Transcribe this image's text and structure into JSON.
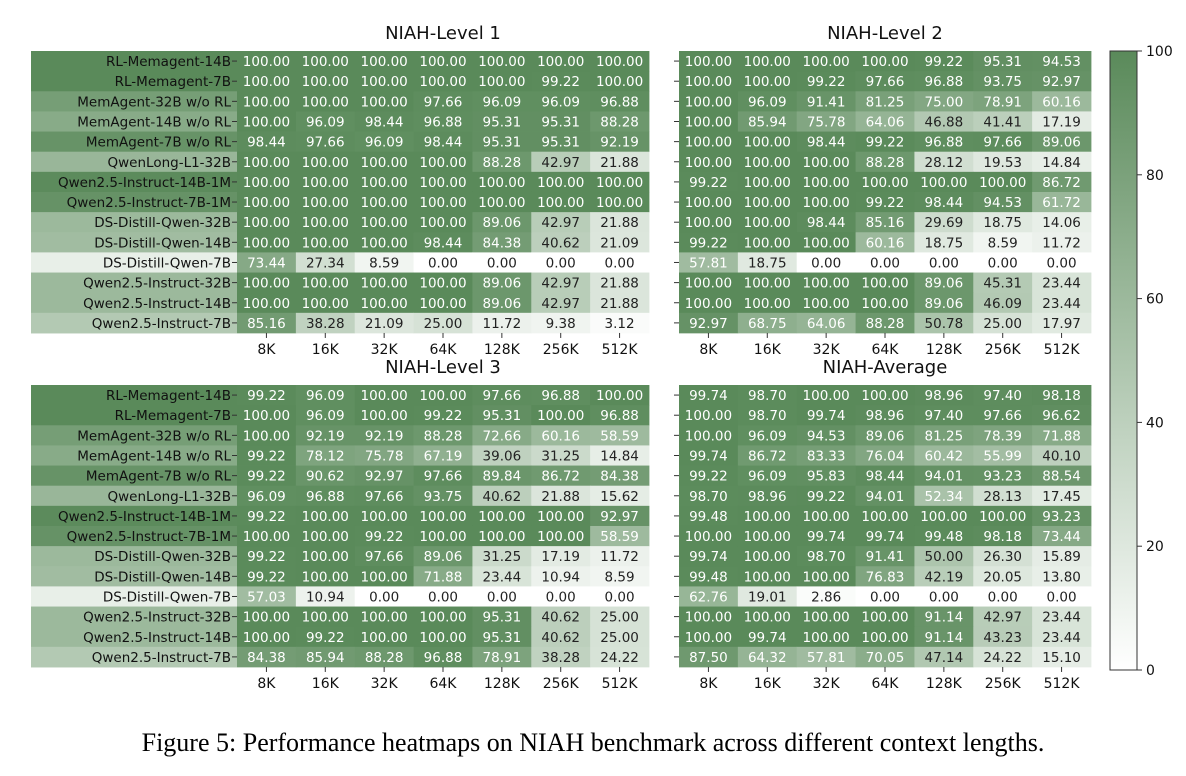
{
  "caption": "Figure 5: Performance heatmaps on NIAH benchmark across different context lengths.",
  "colors": {
    "low": "#ffffff",
    "high": "#5a8a5a",
    "text_dark": "#222222",
    "text_light": "#ffffff"
  },
  "chart_data": [
    {
      "type": "heatmap",
      "title": "NIAH-Level 1",
      "x": [
        "8K",
        "16K",
        "32K",
        "64K",
        "128K",
        "256K",
        "512K"
      ],
      "y": [
        "RL-Memagent-14B",
        "RL-Memagent-7B",
        "MemAgent-32B w/o RL",
        "MemAgent-14B w/o RL",
        "MemAgent-7B w/o RL",
        "QwenLong-L1-32B",
        "Qwen2.5-Instruct-14B-1M",
        "Qwen2.5-Instruct-7B-1M",
        "DS-Distill-Qwen-32B",
        "DS-Distill-Qwen-14B",
        "DS-Distill-Qwen-7B",
        "Qwen2.5-Instruct-32B",
        "Qwen2.5-Instruct-14B",
        "Qwen2.5-Instruct-7B"
      ],
      "values": [
        [
          "100.00",
          "100.00",
          "100.00",
          "100.00",
          "100.00",
          "100.00",
          "100.00"
        ],
        [
          "100.00",
          "100.00",
          "100.00",
          "100.00",
          "100.00",
          "99.22",
          "100.00"
        ],
        [
          "100.00",
          "100.00",
          "100.00",
          "97.66",
          "96.09",
          "96.09",
          "96.88"
        ],
        [
          "100.00",
          "96.09",
          "98.44",
          "96.88",
          "95.31",
          "95.31",
          "88.28"
        ],
        [
          "98.44",
          "97.66",
          "96.09",
          "98.44",
          "95.31",
          "95.31",
          "92.19"
        ],
        [
          "100.00",
          "100.00",
          "100.00",
          "100.00",
          "88.28",
          "42.97",
          "21.88"
        ],
        [
          "100.00",
          "100.00",
          "100.00",
          "100.00",
          "100.00",
          "100.00",
          "100.00"
        ],
        [
          "100.00",
          "100.00",
          "100.00",
          "100.00",
          "100.00",
          "100.00",
          "100.00"
        ],
        [
          "100.00",
          "100.00",
          "100.00",
          "100.00",
          "89.06",
          "42.97",
          "21.88"
        ],
        [
          "100.00",
          "100.00",
          "100.00",
          "98.44",
          "84.38",
          "40.62",
          "21.09"
        ],
        [
          "73.44",
          "27.34",
          "8.59",
          "0.00",
          "0.00",
          "0.00",
          "0.00"
        ],
        [
          "100.00",
          "100.00",
          "100.00",
          "100.00",
          "89.06",
          "42.97",
          "21.88"
        ],
        [
          "100.00",
          "100.00",
          "100.00",
          "100.00",
          "89.06",
          "42.97",
          "21.88"
        ],
        [
          "85.16",
          "38.28",
          "21.09",
          "25.00",
          "11.72",
          "9.38",
          "3.12"
        ]
      ]
    },
    {
      "type": "heatmap",
      "title": "NIAH-Level 2",
      "x": [
        "8K",
        "16K",
        "32K",
        "64K",
        "128K",
        "256K",
        "512K"
      ],
      "y": [
        "RL-Memagent-14B",
        "RL-Memagent-7B",
        "MemAgent-32B w/o RL",
        "MemAgent-14B w/o RL",
        "MemAgent-7B w/o RL",
        "QwenLong-L1-32B",
        "Qwen2.5-Instruct-14B-1M",
        "Qwen2.5-Instruct-7B-1M",
        "DS-Distill-Qwen-32B",
        "DS-Distill-Qwen-14B",
        "DS-Distill-Qwen-7B",
        "Qwen2.5-Instruct-32B",
        "Qwen2.5-Instruct-14B",
        "Qwen2.5-Instruct-7B"
      ],
      "values": [
        [
          "100.00",
          "100.00",
          "100.00",
          "100.00",
          "99.22",
          "95.31",
          "94.53"
        ],
        [
          "100.00",
          "100.00",
          "99.22",
          "97.66",
          "96.88",
          "93.75",
          "92.97"
        ],
        [
          "100.00",
          "96.09",
          "91.41",
          "81.25",
          "75.00",
          "78.91",
          "60.16"
        ],
        [
          "100.00",
          "85.94",
          "75.78",
          "64.06",
          "46.88",
          "41.41",
          "17.19"
        ],
        [
          "100.00",
          "100.00",
          "98.44",
          "99.22",
          "96.88",
          "97.66",
          "89.06"
        ],
        [
          "100.00",
          "100.00",
          "100.00",
          "88.28",
          "28.12",
          "19.53",
          "14.84"
        ],
        [
          "99.22",
          "100.00",
          "100.00",
          "100.00",
          "100.00",
          "100.00",
          "86.72"
        ],
        [
          "100.00",
          "100.00",
          "100.00",
          "99.22",
          "98.44",
          "94.53",
          "61.72"
        ],
        [
          "100.00",
          "100.00",
          "98.44",
          "85.16",
          "29.69",
          "18.75",
          "14.06"
        ],
        [
          "99.22",
          "100.00",
          "100.00",
          "60.16",
          "18.75",
          "8.59",
          "11.72"
        ],
        [
          "57.81",
          "18.75",
          "0.00",
          "0.00",
          "0.00",
          "0.00",
          "0.00"
        ],
        [
          "100.00",
          "100.00",
          "100.00",
          "100.00",
          "89.06",
          "45.31",
          "23.44"
        ],
        [
          "100.00",
          "100.00",
          "100.00",
          "100.00",
          "89.06",
          "46.09",
          "23.44"
        ],
        [
          "92.97",
          "68.75",
          "64.06",
          "88.28",
          "50.78",
          "25.00",
          "17.97"
        ]
      ]
    },
    {
      "type": "heatmap",
      "title": "NIAH-Level 3",
      "x": [
        "8K",
        "16K",
        "32K",
        "64K",
        "128K",
        "256K",
        "512K"
      ],
      "y": [
        "RL-Memagent-14B",
        "RL-Memagent-7B",
        "MemAgent-32B w/o RL",
        "MemAgent-14B w/o RL",
        "MemAgent-7B w/o RL",
        "QwenLong-L1-32B",
        "Qwen2.5-Instruct-14B-1M",
        "Qwen2.5-Instruct-7B-1M",
        "DS-Distill-Qwen-32B",
        "DS-Distill-Qwen-14B",
        "DS-Distill-Qwen-7B",
        "Qwen2.5-Instruct-32B",
        "Qwen2.5-Instruct-14B",
        "Qwen2.5-Instruct-7B"
      ],
      "values": [
        [
          "99.22",
          "96.09",
          "100.00",
          "100.00",
          "97.66",
          "96.88",
          "100.00"
        ],
        [
          "100.00",
          "96.09",
          "100.00",
          "99.22",
          "95.31",
          "100.00",
          "96.88"
        ],
        [
          "100.00",
          "92.19",
          "92.19",
          "88.28",
          "72.66",
          "60.16",
          "58.59"
        ],
        [
          "99.22",
          "78.12",
          "75.78",
          "67.19",
          "39.06",
          "31.25",
          "14.84"
        ],
        [
          "99.22",
          "90.62",
          "92.97",
          "97.66",
          "89.84",
          "86.72",
          "84.38"
        ],
        [
          "96.09",
          "96.88",
          "97.66",
          "93.75",
          "40.62",
          "21.88",
          "15.62"
        ],
        [
          "99.22",
          "100.00",
          "100.00",
          "100.00",
          "100.00",
          "100.00",
          "92.97"
        ],
        [
          "100.00",
          "100.00",
          "99.22",
          "100.00",
          "100.00",
          "100.00",
          "58.59"
        ],
        [
          "99.22",
          "100.00",
          "97.66",
          "89.06",
          "31.25",
          "17.19",
          "11.72"
        ],
        [
          "99.22",
          "100.00",
          "100.00",
          "71.88",
          "23.44",
          "10.94",
          "8.59"
        ],
        [
          "57.03",
          "10.94",
          "0.00",
          "0.00",
          "0.00",
          "0.00",
          "0.00"
        ],
        [
          "100.00",
          "100.00",
          "100.00",
          "100.00",
          "95.31",
          "40.62",
          "25.00"
        ],
        [
          "100.00",
          "99.22",
          "100.00",
          "100.00",
          "95.31",
          "40.62",
          "25.00"
        ],
        [
          "84.38",
          "85.94",
          "88.28",
          "96.88",
          "78.91",
          "38.28",
          "24.22"
        ]
      ]
    },
    {
      "type": "heatmap",
      "title": "NIAH-Average",
      "x": [
        "8K",
        "16K",
        "32K",
        "64K",
        "128K",
        "256K",
        "512K"
      ],
      "y": [
        "RL-Memagent-14B",
        "RL-Memagent-7B",
        "MemAgent-32B w/o RL",
        "MemAgent-14B w/o RL",
        "MemAgent-7B w/o RL",
        "QwenLong-L1-32B",
        "Qwen2.5-Instruct-14B-1M",
        "Qwen2.5-Instruct-7B-1M",
        "DS-Distill-Qwen-32B",
        "DS-Distill-Qwen-14B",
        "DS-Distill-Qwen-7B",
        "Qwen2.5-Instruct-32B",
        "Qwen2.5-Instruct-14B",
        "Qwen2.5-Instruct-7B"
      ],
      "values": [
        [
          "99.74",
          "98.70",
          "100.00",
          "100.00",
          "98.96",
          "97.40",
          "98.18"
        ],
        [
          "100.00",
          "98.70",
          "99.74",
          "98.96",
          "97.40",
          "97.66",
          "96.62"
        ],
        [
          "100.00",
          "96.09",
          "94.53",
          "89.06",
          "81.25",
          "78.39",
          "71.88"
        ],
        [
          "99.74",
          "86.72",
          "83.33",
          "76.04",
          "60.42",
          "55.99",
          "40.10"
        ],
        [
          "99.22",
          "96.09",
          "95.83",
          "98.44",
          "94.01",
          "93.23",
          "88.54"
        ],
        [
          "98.70",
          "98.96",
          "99.22",
          "94.01",
          "52.34",
          "28.13",
          "17.45"
        ],
        [
          "99.48",
          "100.00",
          "100.00",
          "100.00",
          "100.00",
          "100.00",
          "93.23"
        ],
        [
          "100.00",
          "100.00",
          "99.74",
          "99.74",
          "99.48",
          "98.18",
          "73.44"
        ],
        [
          "99.74",
          "100.00",
          "98.70",
          "91.41",
          "50.00",
          "26.30",
          "15.89"
        ],
        [
          "99.48",
          "100.00",
          "100.00",
          "76.83",
          "42.19",
          "20.05",
          "13.80"
        ],
        [
          "62.76",
          "19.01",
          "2.86",
          "0.00",
          "0.00",
          "0.00",
          "0.00"
        ],
        [
          "100.00",
          "100.00",
          "100.00",
          "100.00",
          "91.14",
          "42.97",
          "23.44"
        ],
        [
          "100.00",
          "99.74",
          "100.00",
          "100.00",
          "91.14",
          "43.23",
          "23.44"
        ],
        [
          "87.50",
          "64.32",
          "57.81",
          "70.05",
          "47.14",
          "24.22",
          "15.10"
        ]
      ]
    }
  ],
  "colorbar": {
    "min": 0,
    "max": 100,
    "ticks": [
      "0",
      "20",
      "40",
      "60",
      "80",
      "100"
    ]
  },
  "row_label_shading": [
    100,
    99.74,
    83,
    72,
    92,
    62,
    99,
    93,
    60,
    57,
    14,
    60,
    60,
    46
  ]
}
